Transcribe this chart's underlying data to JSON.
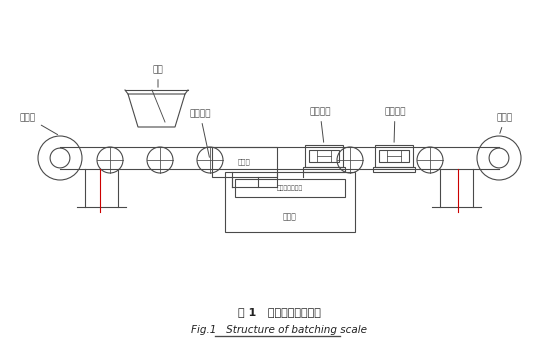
{
  "title_cn": "图 1   配料秤的组成结构",
  "title_en": "Fig.1   Structure of batching scale",
  "bg_color": "#ffffff",
  "line_color": "#4a4a4a",
  "label_color": "#4a4a4a",
  "red_color": "#cc0000",
  "labels": {
    "hopper": "料斗",
    "rear_drum": "后滚筒",
    "parallel_roller": "平行托辊",
    "weigh_roller1": "称重托辊",
    "weigh_roller2": "称重托辊",
    "front_drum": "前滚筒",
    "supply_box": "供桥箱",
    "controller": "称重显示控制器",
    "control_cabinet": "控制柜"
  }
}
